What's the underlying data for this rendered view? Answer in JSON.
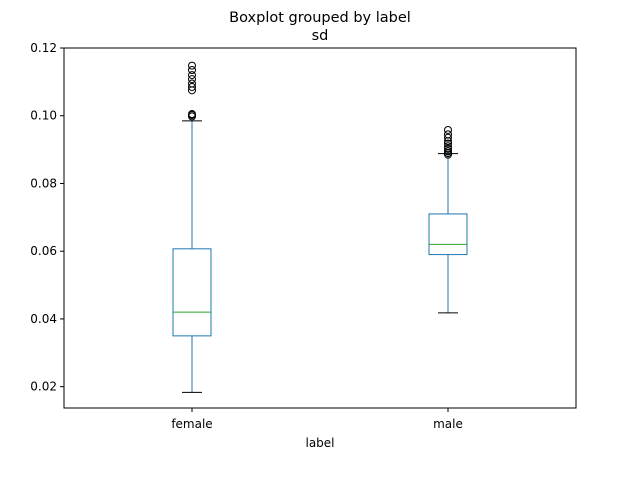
{
  "chart_data": {
    "type": "box",
    "suptitle": "Boxplot grouped by label",
    "title": "sd",
    "xlabel": "label",
    "ylabel": "",
    "ylim": [
      0.0137,
      0.12
    ],
    "yticks": [
      0.02,
      0.04,
      0.06,
      0.08,
      0.1,
      0.12
    ],
    "ytick_labels": [
      "0.02",
      "0.04",
      "0.06",
      "0.08",
      "0.10",
      "0.12"
    ],
    "grid": false,
    "categories": [
      "female",
      "male"
    ],
    "boxes": [
      {
        "category": "female",
        "whisker_low": 0.0183,
        "q1": 0.035,
        "median": 0.042,
        "q3": 0.0607,
        "whisker_high": 0.0985,
        "outliers": [
          0.0998,
          0.1002,
          0.1005,
          0.1075,
          0.1085,
          0.1095,
          0.1108,
          0.112,
          0.1135,
          0.1148
        ]
      },
      {
        "category": "male",
        "whisker_low": 0.0418,
        "q1": 0.059,
        "median": 0.062,
        "q3": 0.071,
        "whisker_high": 0.0888,
        "outliers": [
          0.0885,
          0.089,
          0.0895,
          0.0902,
          0.091,
          0.0918,
          0.0925,
          0.0935,
          0.0945,
          0.0958
        ]
      }
    ],
    "colors": {
      "box": "#1f77b4",
      "median": "#2ca02c",
      "whisker_cap": "#000000",
      "outlier": "#000000",
      "axes": "#000000"
    }
  }
}
